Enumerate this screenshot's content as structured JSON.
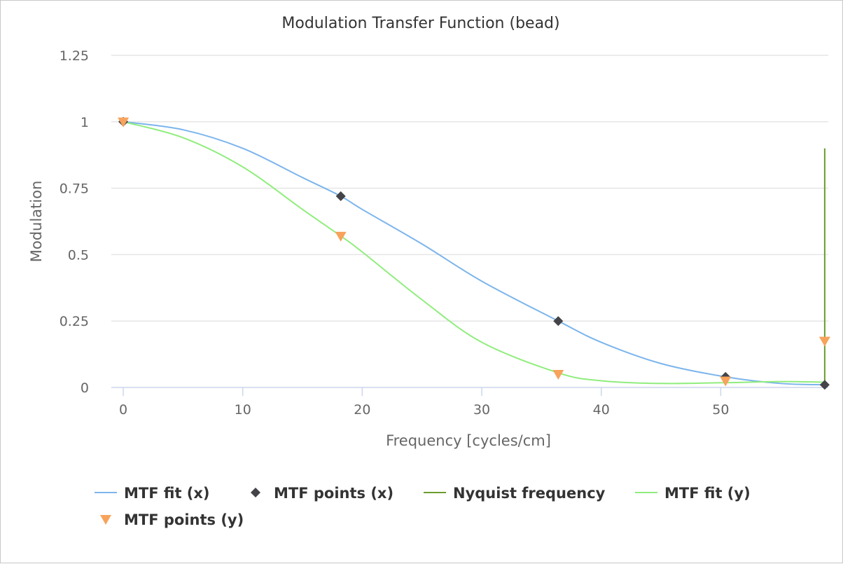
{
  "chart_data": {
    "type": "line",
    "title": "Modulation Transfer Function (bead)",
    "xlabel": "Frequency [cycles/cm]",
    "ylabel": "Modulation",
    "xlim": [
      -1,
      59
    ],
    "ylim": [
      0,
      1.25
    ],
    "x_ticks": [
      0,
      10,
      20,
      30,
      40,
      50
    ],
    "x_tick_labels": [
      "0",
      "10",
      "20",
      "30",
      "40",
      "50"
    ],
    "y_ticks": [
      0,
      0.25,
      0.5,
      0.75,
      1,
      1.25
    ],
    "y_tick_labels": [
      "0",
      "0.25",
      "0.5",
      "0.75",
      "1",
      "1.25"
    ],
    "grid": "horizontal",
    "legend_position": "bottom",
    "series": [
      {
        "name": "MTF fit (x)",
        "kind": "line",
        "color": "#7cb5ec",
        "x": [
          0,
          5,
          10,
          15,
          18.2,
          20,
          25,
          30,
          36.4,
          40,
          45,
          50.4,
          55,
          58.7
        ],
        "y": [
          1,
          0.97,
          0.9,
          0.79,
          0.72,
          0.67,
          0.54,
          0.4,
          0.25,
          0.17,
          0.09,
          0.04,
          0.015,
          0.01
        ]
      },
      {
        "name": "MTF points (x)",
        "kind": "scatter",
        "marker": "diamond",
        "color": "#434348",
        "x": [
          0,
          18.2,
          36.4,
          50.4,
          58.7
        ],
        "y": [
          1,
          0.72,
          0.25,
          0.04,
          0.01
        ]
      },
      {
        "name": "Nyquist frequency",
        "kind": "line",
        "color": "#6b9b2f",
        "x": [
          58.7,
          58.7
        ],
        "y": [
          0.9,
          0.01
        ]
      },
      {
        "name": "MTF fit (y)",
        "kind": "line",
        "color": "#90ed7d",
        "x": [
          0,
          5,
          10,
          15,
          18.2,
          20,
          25,
          30,
          36.4,
          40,
          45,
          50.4,
          55,
          58.7
        ],
        "y": [
          1,
          0.94,
          0.83,
          0.67,
          0.57,
          0.51,
          0.33,
          0.17,
          0.055,
          0.025,
          0.015,
          0.018,
          0.022,
          0.02
        ]
      },
      {
        "name": "MTF points (y)",
        "kind": "scatter",
        "marker": "triangle-down",
        "color": "#f7a35c",
        "x": [
          0,
          18.2,
          36.4,
          50.4,
          58.7
        ],
        "y": [
          1,
          0.57,
          0.05,
          0.025,
          0.175
        ]
      }
    ]
  }
}
